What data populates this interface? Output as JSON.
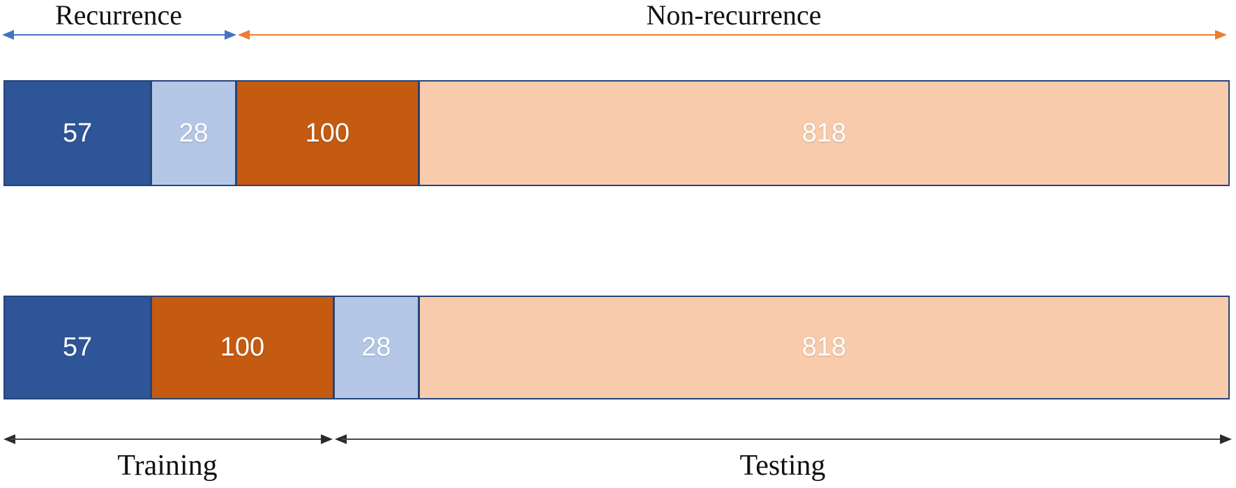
{
  "labels": {
    "recurrence": "Recurrence",
    "non_recurrence": "Non-recurrence",
    "training": "Training",
    "testing": "Testing"
  },
  "bars": {
    "top": {
      "description": "grouped by class: recurrence first, then non-recurrence",
      "segments": [
        {
          "value": "57",
          "width_pct": "12.04%"
        },
        {
          "value": "28",
          "width_pct": "6.98%"
        },
        {
          "value": "100",
          "width_pct": "14.93%"
        },
        {
          "value": "818",
          "width_pct": "66.05%"
        }
      ]
    },
    "bottom": {
      "description": "grouped by split: training first, then testing",
      "segments": [
        {
          "value": "57",
          "width_pct": "12.04%"
        },
        {
          "value": "100",
          "width_pct": "14.93%"
        },
        {
          "value": "28",
          "width_pct": "6.98%"
        },
        {
          "value": "818",
          "width_pct": "66.05%"
        }
      ]
    }
  },
  "colors": {
    "dark_blue": "#2E5597",
    "light_blue": "#B4C7E7",
    "dark_orange": "#C55A11",
    "light_orange": "#F8CBAD",
    "border_blue": "#264478",
    "arrow_blue": "#4472C4",
    "arrow_orange": "#ED7D31",
    "arrow_dark": "#2B2B2B"
  },
  "chart_data": {
    "type": "bar",
    "subtype": "stacked-horizontal",
    "title": "",
    "legend_position": "none",
    "grid": false,
    "bars": [
      {
        "id": "top-bar",
        "order": "by class",
        "segments": [
          {
            "group": "Recurrence",
            "split": "Training",
            "value": 57,
            "color": "#2E5597"
          },
          {
            "group": "Recurrence",
            "split": "Testing",
            "value": 28,
            "color": "#B4C7E7"
          },
          {
            "group": "Non-recurrence",
            "split": "Training",
            "value": 100,
            "color": "#C55A11"
          },
          {
            "group": "Non-recurrence",
            "split": "Testing",
            "value": 818,
            "color": "#F8CBAD"
          }
        ]
      },
      {
        "id": "bottom-bar",
        "order": "by split",
        "segments": [
          {
            "split": "Training",
            "group": "Recurrence",
            "value": 57,
            "color": "#2E5597"
          },
          {
            "split": "Training",
            "group": "Non-recurrence",
            "value": 100,
            "color": "#C55A11"
          },
          {
            "split": "Testing",
            "group": "Recurrence",
            "value": 28,
            "color": "#B4C7E7"
          },
          {
            "split": "Testing",
            "group": "Non-recurrence",
            "value": 818,
            "color": "#F8CBAD"
          }
        ]
      }
    ],
    "annotations": {
      "above_top_bar": [
        "Recurrence",
        "Non-recurrence"
      ],
      "below_bottom_bar": [
        "Training",
        "Testing"
      ]
    }
  }
}
